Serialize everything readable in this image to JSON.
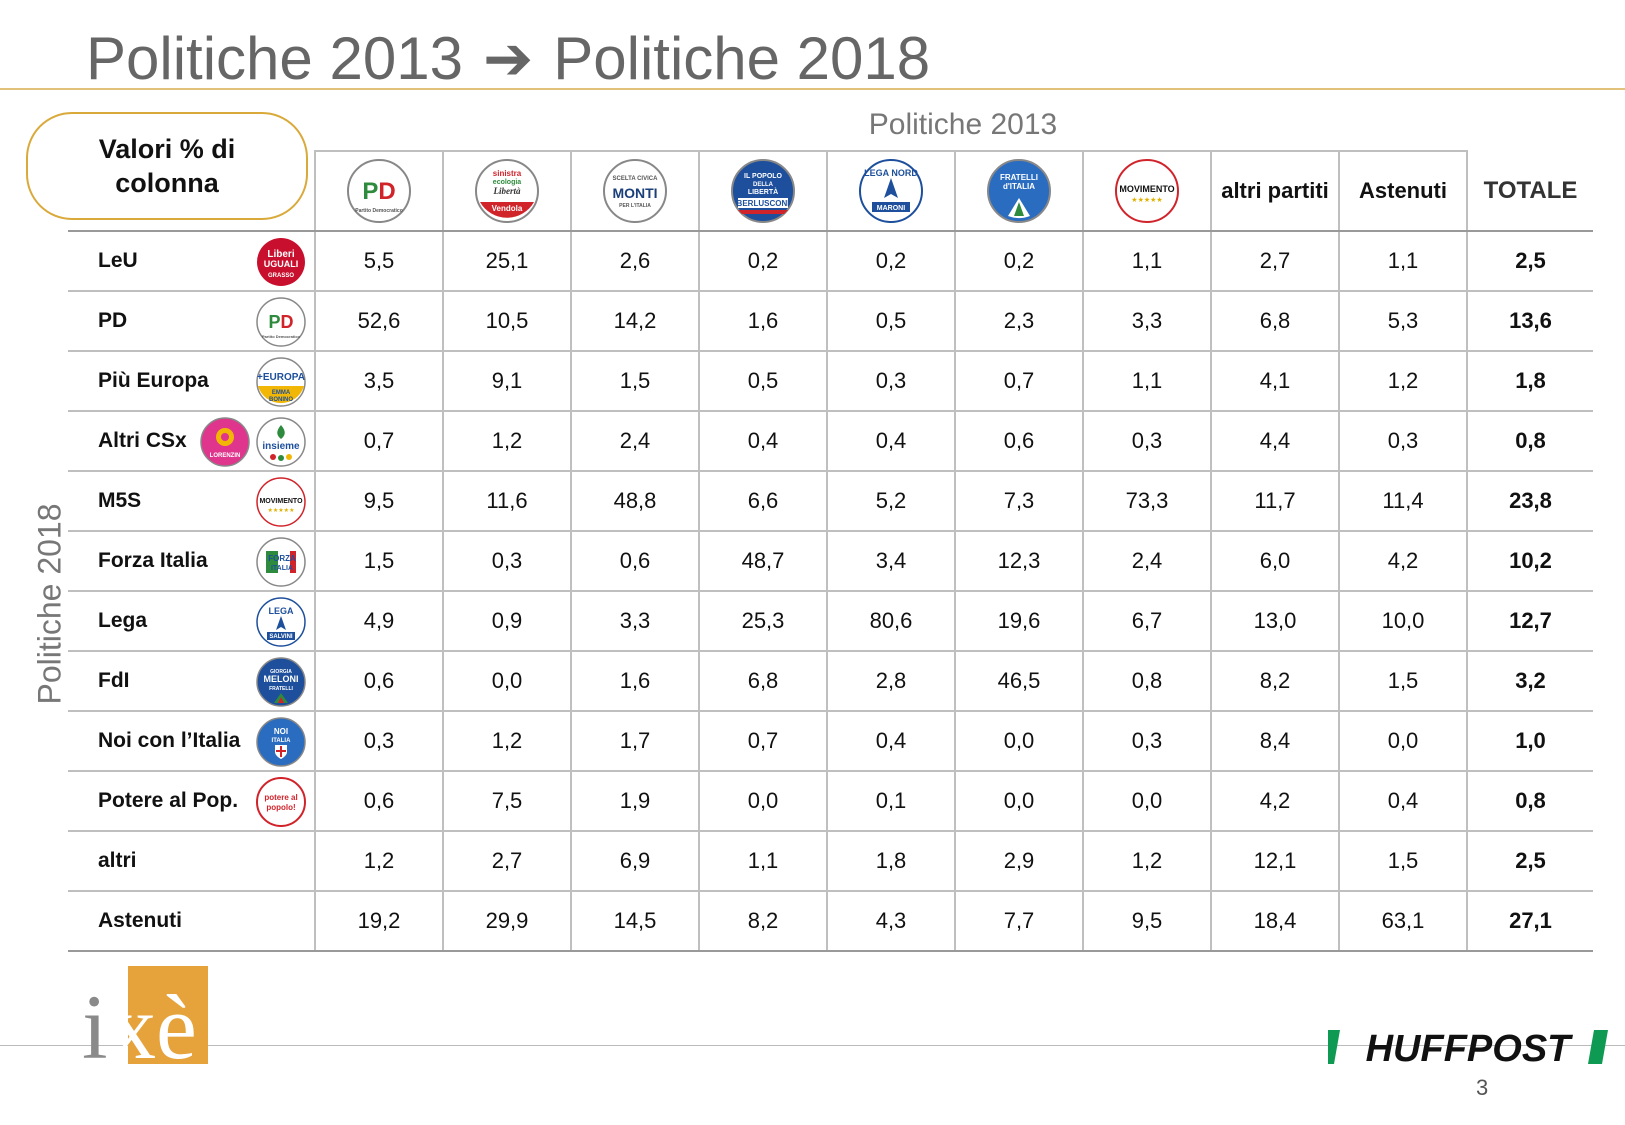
{
  "title": {
    "left": "Politiche 2013",
    "arrow": "➔",
    "right": "Politiche 2018"
  },
  "valori_label": "Valori % di colonna",
  "col_super_label": "Politiche 2013",
  "row_super_label": "Politiche 2018",
  "columns": [
    {
      "key": "pd",
      "logo": "PD",
      "label": "",
      "name": "pd-2013-logo"
    },
    {
      "key": "sel",
      "logo": "sinistra ecologia LIBERTÀ Vendola",
      "label": "",
      "name": "sel-logo"
    },
    {
      "key": "monti",
      "logo": "SCELTA CIVICA MONTI",
      "label": "",
      "name": "scelta-civica-logo"
    },
    {
      "key": "pdl",
      "logo": "IL POPOLO DELLA LIBERTÀ BERLUSCONI",
      "label": "",
      "name": "pdl-logo"
    },
    {
      "key": "lega",
      "logo": "LEGA NORD MARONI",
      "label": "",
      "name": "lega-nord-logo"
    },
    {
      "key": "fdi",
      "logo": "FRATELLI d'ITALIA",
      "label": "",
      "name": "fdi-2013-logo"
    },
    {
      "key": "m5s",
      "logo": "MOVIMENTO",
      "label": "",
      "name": "m5s-2013-logo"
    },
    {
      "key": "altri",
      "logo": "",
      "label": "altri partiti",
      "name": "altri-partiti"
    },
    {
      "key": "ast",
      "logo": "",
      "label": "Astenuti",
      "name": "astenuti"
    }
  ],
  "total_label": "TOTALE",
  "rows": [
    {
      "label": "LeU",
      "logo": "Liberi e Uguali GRASSO",
      "values": [
        "5,5",
        "25,1",
        "2,6",
        "0,2",
        "0,2",
        "0,2",
        "1,1",
        "2,7",
        "1,1"
      ],
      "total": "2,5"
    },
    {
      "label": "PD",
      "logo": "PD",
      "values": [
        "52,6",
        "10,5",
        "14,2",
        "1,6",
        "0,5",
        "2,3",
        "3,3",
        "6,8",
        "5,3"
      ],
      "total": "13,6"
    },
    {
      "label": "Più Europa",
      "logo": "+EUROPA EMMA BONINO",
      "values": [
        "3,5",
        "9,1",
        "1,5",
        "0,5",
        "0,3",
        "0,7",
        "1,1",
        "4,1",
        "1,2"
      ],
      "total": "1,8"
    },
    {
      "label": "Altri CSx",
      "logo": "insieme",
      "logo2": "CIVICA POPOLARE LORENZIN",
      "values": [
        "0,7",
        "1,2",
        "2,4",
        "0,4",
        "0,4",
        "0,6",
        "0,3",
        "4,4",
        "0,3"
      ],
      "total": "0,8"
    },
    {
      "label": "M5S",
      "logo": "MOVIMENTO",
      "values": [
        "9,5",
        "11,6",
        "48,8",
        "6,6",
        "5,2",
        "7,3",
        "73,3",
        "11,7",
        "11,4"
      ],
      "total": "23,8"
    },
    {
      "label": "Forza Italia",
      "logo": "FORZA ITALIA",
      "values": [
        "1,5",
        "0,3",
        "0,6",
        "48,7",
        "3,4",
        "12,3",
        "2,4",
        "6,0",
        "4,2"
      ],
      "total": "10,2"
    },
    {
      "label": "Lega",
      "logo": "LEGA SALVINI",
      "values": [
        "4,9",
        "0,9",
        "3,3",
        "25,3",
        "80,6",
        "19,6",
        "6,7",
        "13,0",
        "10,0"
      ],
      "total": "12,7"
    },
    {
      "label": "FdI",
      "logo": "GIORGIA MELONI FRATELLI D'ITALIA",
      "values": [
        "0,6",
        "0,0",
        "1,6",
        "6,8",
        "2,8",
        "46,5",
        "0,8",
        "8,2",
        "1,5"
      ],
      "total": "3,2"
    },
    {
      "label": "Noi con l’Italia",
      "logo": "NOI CON L'ITALIA",
      "values": [
        "0,3",
        "1,2",
        "1,7",
        "0,7",
        "0,4",
        "0,0",
        "0,3",
        "8,4",
        "0,0"
      ],
      "total": "1,0"
    },
    {
      "label": "Potere al Pop.",
      "logo": "potere al popolo!",
      "values": [
        "0,6",
        "7,5",
        "1,9",
        "0,0",
        "0,1",
        "0,0",
        "0,0",
        "4,2",
        "0,4"
      ],
      "total": "0,8"
    },
    {
      "label": "altri",
      "logo": "",
      "values": [
        "1,2",
        "2,7",
        "6,9",
        "1,1",
        "1,8",
        "2,9",
        "1,2",
        "12,1",
        "1,5"
      ],
      "total": "2,5"
    },
    {
      "label": "Astenuti",
      "logo": "",
      "values": [
        "19,2",
        "29,9",
        "14,5",
        "8,2",
        "4,3",
        "7,7",
        "9,5",
        "18,4",
        "63,1"
      ],
      "total": "27,1"
    }
  ],
  "footer": {
    "ixe": "ixè",
    "huffpost": "HUFFPOST",
    "page_number": "3"
  }
}
